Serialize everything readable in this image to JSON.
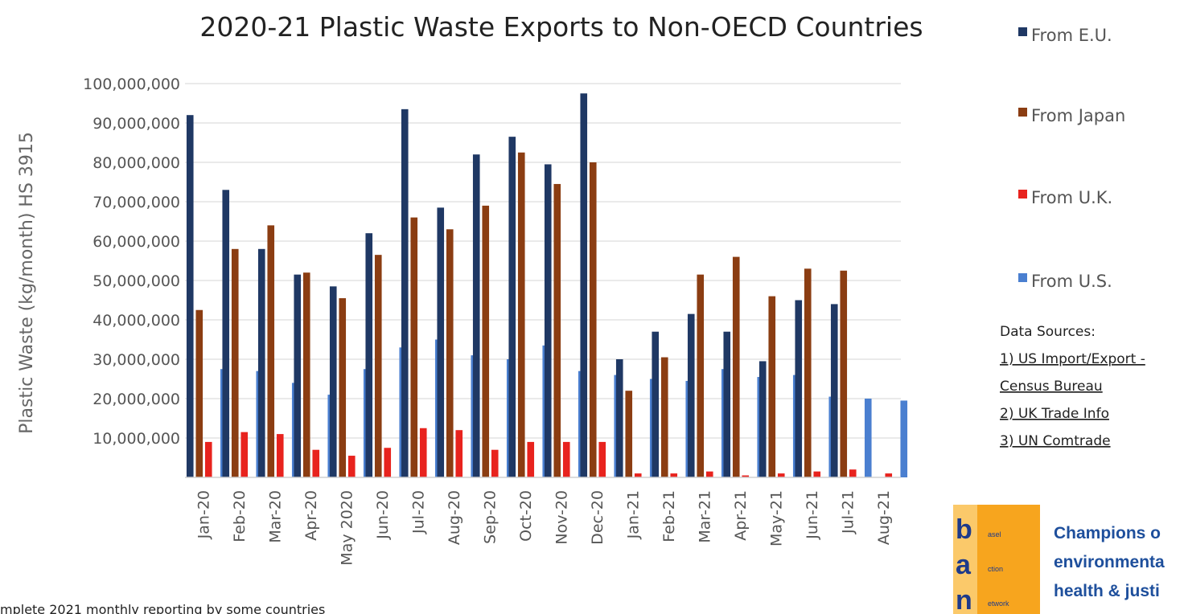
{
  "chart_data": {
    "type": "bar",
    "title": "2020-21 Plastic Waste Exports to Non-OECD Countries",
    "ylabel": "Plastic Waste (kg/month) HS 3915",
    "xlabel": "",
    "ylim": [
      0,
      100000000
    ],
    "yticks": [
      0,
      10000000,
      20000000,
      30000000,
      40000000,
      50000000,
      60000000,
      70000000,
      80000000,
      90000000,
      100000000
    ],
    "ytick_labels": [
      "",
      "10,000,000",
      "20,000,000",
      "30,000,000",
      "40,000,000",
      "50,000,000",
      "60,000,000",
      "70,000,000",
      "80,000,000",
      "90,000,000",
      "100,000,000"
    ],
    "grid": true,
    "legend_position": "right",
    "categories": [
      "Jan-20",
      "Feb-20",
      "Mar-20",
      "Apr-20",
      "May 2020",
      "Jun-20",
      "Jul-20",
      "Aug-20",
      "Sep-20",
      "Oct-20",
      "Nov-20",
      "Dec-20",
      "Jan-21",
      "Feb-21",
      "Mar-21",
      "Apr-21",
      "May-21",
      "Jun-21",
      "Jul-21",
      "Aug-21"
    ],
    "series": [
      {
        "name": "From E.U.",
        "color": "#1f3864",
        "values": [
          92000000,
          73000000,
          58000000,
          51500000,
          48500000,
          62000000,
          93500000,
          68500000,
          82000000,
          86500000,
          79500000,
          97500000,
          30000000,
          37000000,
          41500000,
          37000000,
          29500000,
          45000000,
          44000000,
          0
        ]
      },
      {
        "name": "From Japan",
        "color": "#8b3d12",
        "values": [
          42500000,
          58000000,
          64000000,
          52000000,
          45500000,
          56500000,
          66000000,
          63000000,
          69000000,
          82500000,
          74500000,
          80000000,
          22000000,
          30500000,
          51500000,
          56000000,
          46000000,
          53000000,
          52500000,
          0
        ]
      },
      {
        "name": "From U.K.",
        "color": "#e8231e",
        "values": [
          9000000,
          11500000,
          11000000,
          7000000,
          5500000,
          7500000,
          12500000,
          12000000,
          7000000,
          9000000,
          9000000,
          9000000,
          1000000,
          1000000,
          1500000,
          500000,
          1000000,
          1500000,
          2000000,
          1000000
        ]
      },
      {
        "name": "From U.S.",
        "color": "#4a7fd0",
        "values": [
          27500000,
          27000000,
          24000000,
          21000000,
          27500000,
          33000000,
          35000000,
          31000000,
          30000000,
          33500000,
          27000000,
          26000000,
          25000000,
          24500000,
          27500000,
          25500000,
          26000000,
          20500000,
          20000000,
          19500000
        ]
      }
    ]
  },
  "sources": {
    "heading": "Data Sources:",
    "items": [
      "1) US Import/Export -",
      "Census Bureau",
      "2) UK Trade Info",
      "3) UN Comtrade"
    ]
  },
  "footnote": "mplete 2021 monthly reporting by some countries",
  "logo": {
    "letters": [
      "b",
      "a",
      "n"
    ],
    "words": [
      "asel",
      "ction",
      "etwork"
    ],
    "tagline": [
      "Champions o",
      "environmenta",
      "health & justi"
    ]
  }
}
